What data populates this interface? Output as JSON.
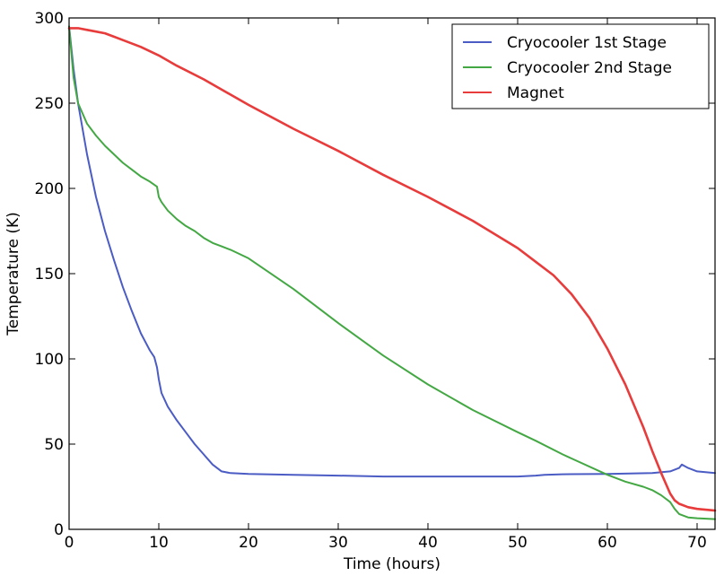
{
  "chart_data": {
    "type": "line",
    "title": "",
    "xlabel": "Time (hours)",
    "ylabel": "Temperature (K)",
    "xlim": [
      0,
      72
    ],
    "ylim": [
      0,
      300
    ],
    "xticks": [
      0,
      10,
      20,
      30,
      40,
      50,
      60,
      70
    ],
    "yticks": [
      0,
      50,
      100,
      150,
      200,
      250,
      300
    ],
    "grid": false,
    "legend_position": "top-right",
    "series": [
      {
        "name": "Cryocooler 1st Stage",
        "color": "#4b5cc4",
        "x": [
          0,
          0.5,
          1,
          2,
          3,
          4,
          5,
          6,
          7,
          8,
          9,
          9.5,
          9.8,
          10,
          10.3,
          11,
          12,
          13,
          14,
          15,
          16,
          17,
          18,
          20,
          25,
          30,
          35,
          40,
          45,
          50,
          52,
          53,
          55,
          60,
          65,
          67,
          68,
          68.3,
          69,
          70,
          72
        ],
        "y": [
          295,
          270,
          250,
          220,
          195,
          175,
          158,
          142,
          128,
          115,
          105,
          101,
          95,
          88,
          80,
          72,
          64,
          57,
          50,
          44,
          38,
          34,
          33,
          32.5,
          32,
          31.5,
          31,
          31,
          31,
          31,
          31.5,
          32,
          32.3,
          32.5,
          33,
          34,
          36,
          38,
          36,
          34,
          33
        ]
      },
      {
        "name": "Cryocooler 2nd Stage",
        "color": "#43a843",
        "x": [
          0,
          0.5,
          1,
          2,
          3,
          4,
          5,
          6,
          7,
          8,
          9,
          9.8,
          10,
          10.3,
          11,
          12,
          13,
          14,
          15,
          16,
          17,
          18,
          20,
          25,
          30,
          35,
          40,
          45,
          50,
          52,
          55,
          60,
          62,
          64,
          65,
          66,
          67,
          67.5,
          68,
          69,
          70,
          72
        ],
        "y": [
          295,
          265,
          250,
          238,
          231,
          225,
          220,
          215,
          211,
          207,
          204,
          201,
          195,
          192,
          187,
          182,
          178,
          175,
          171,
          168,
          166,
          164,
          159,
          141,
          121,
          102,
          85,
          70,
          57,
          52,
          44,
          32,
          28,
          25,
          23,
          20,
          16,
          12,
          9,
          7,
          6.5,
          6
        ]
      },
      {
        "name": "Magnet",
        "color": "#e83b3b",
        "x": [
          0,
          1,
          2,
          3,
          4,
          5,
          6,
          8,
          10,
          12,
          15,
          20,
          25,
          30,
          35,
          40,
          45,
          50,
          52,
          54,
          56,
          58,
          60,
          62,
          64,
          65,
          66,
          67,
          67.5,
          68,
          69,
          70,
          72
        ],
        "y": [
          294,
          294,
          293,
          292,
          291,
          289,
          287,
          283,
          278,
          272,
          264,
          249,
          235,
          222,
          208,
          195,
          181,
          165,
          157,
          149,
          138,
          124,
          106,
          85,
          60,
          46,
          33,
          21,
          17,
          15,
          13,
          12,
          11
        ]
      }
    ]
  }
}
